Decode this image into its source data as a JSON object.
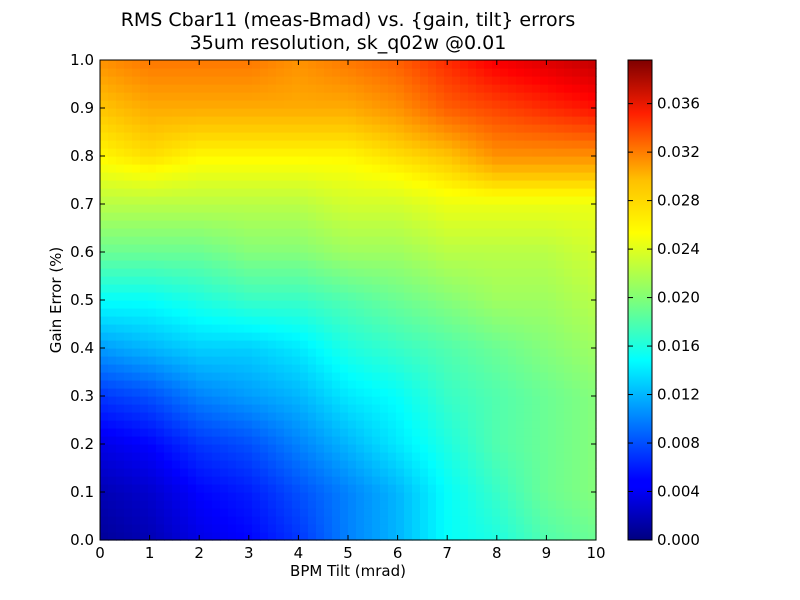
{
  "chart_data": {
    "type": "heatmap",
    "title": "RMS Cbar11 (meas-Bmad) vs. {gain, tilt} errors",
    "subtitle": "35um resolution, sk_q02w @0.01",
    "xlabel": "BPM Tilt (mrad)",
    "ylabel": "Gain Error (%)",
    "xlim": [
      0,
      10
    ],
    "ylim": [
      0,
      1.0
    ],
    "x_ticks": [
      "0",
      "1",
      "2",
      "3",
      "4",
      "5",
      "6",
      "7",
      "8",
      "9",
      "10"
    ],
    "y_ticks": [
      "0.0",
      "0.1",
      "0.2",
      "0.3",
      "0.4",
      "0.5",
      "0.6",
      "0.7",
      "0.8",
      "0.9",
      "1.0"
    ],
    "x": [
      0,
      1,
      2,
      3,
      4,
      5,
      6,
      7,
      8,
      9,
      10
    ],
    "y": [
      0.0,
      0.1,
      0.2,
      0.3,
      0.4,
      0.5,
      0.6,
      0.7,
      0.8,
      0.9,
      1.0
    ],
    "z": [
      [
        0.001,
        0.002,
        0.004,
        0.005,
        0.007,
        0.01,
        0.012,
        0.015,
        0.016,
        0.018,
        0.019
      ],
      [
        0.002,
        0.003,
        0.005,
        0.006,
        0.008,
        0.01,
        0.012,
        0.015,
        0.017,
        0.019,
        0.02
      ],
      [
        0.004,
        0.005,
        0.007,
        0.008,
        0.01,
        0.012,
        0.014,
        0.016,
        0.018,
        0.019,
        0.02
      ],
      [
        0.007,
        0.008,
        0.01,
        0.011,
        0.012,
        0.014,
        0.015,
        0.017,
        0.018,
        0.019,
        0.02
      ],
      [
        0.011,
        0.012,
        0.013,
        0.013,
        0.014,
        0.016,
        0.017,
        0.018,
        0.019,
        0.02,
        0.021
      ],
      [
        0.015,
        0.015,
        0.016,
        0.017,
        0.017,
        0.018,
        0.019,
        0.02,
        0.021,
        0.021,
        0.022
      ],
      [
        0.019,
        0.019,
        0.019,
        0.02,
        0.02,
        0.021,
        0.021,
        0.022,
        0.022,
        0.022,
        0.023
      ],
      [
        0.022,
        0.022,
        0.022,
        0.022,
        0.022,
        0.023,
        0.023,
        0.024,
        0.024,
        0.024,
        0.024
      ],
      [
        0.025,
        0.026,
        0.025,
        0.025,
        0.025,
        0.025,
        0.026,
        0.027,
        0.029,
        0.029,
        0.029
      ],
      [
        0.027,
        0.028,
        0.028,
        0.028,
        0.028,
        0.028,
        0.029,
        0.031,
        0.032,
        0.033,
        0.034
      ],
      [
        0.029,
        0.03,
        0.03,
        0.03,
        0.029,
        0.03,
        0.031,
        0.033,
        0.035,
        0.036,
        0.037
      ]
    ],
    "colorbar": {
      "vmin": 0.0,
      "vmax": 0.0396,
      "ticks": [
        "0.000",
        "0.004",
        "0.008",
        "0.012",
        "0.016",
        "0.020",
        "0.024",
        "0.028",
        "0.032",
        "0.036"
      ],
      "colormap": "jet"
    },
    "grid": false,
    "legend": "colorbar-right"
  }
}
